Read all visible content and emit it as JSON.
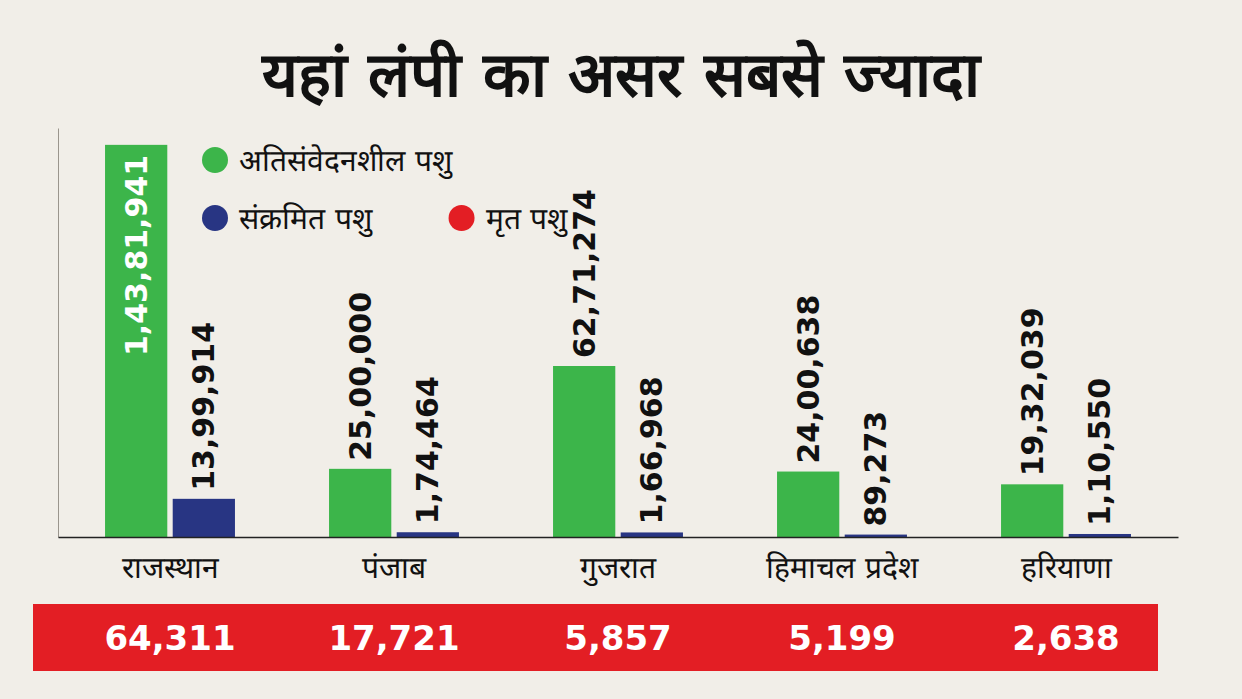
{
  "chart_data": {
    "type": "bar",
    "title": "यहां लंपी का असर सबसे ज्यादा",
    "categories": [
      "राजस्थान",
      "पंजाब",
      "गुजरात",
      "हिमाचल प्रदेश",
      "हरियाणा"
    ],
    "series": [
      {
        "name": "अतिसंवेदनशील पशु",
        "color": "#3cb54a",
        "values": [
          14381941,
          2500000,
          6271274,
          2400638,
          1932039
        ],
        "value_labels": [
          "1,43,81,941",
          "25,00,000",
          "62,71,274",
          "24,00,638",
          "19,32,039"
        ]
      },
      {
        "name": "संक्रमित पशु",
        "color": "#283583",
        "values": [
          1399914,
          174464,
          166968,
          89273,
          110550
        ],
        "value_labels": [
          "13,99,914",
          "1,74,464",
          "1,66,968",
          "89,273",
          "1,10,550"
        ]
      },
      {
        "name": "मृत पशु",
        "color": "#e31e24",
        "type": "text",
        "values": [
          64311,
          17721,
          5857,
          5199,
          2638
        ],
        "value_labels": [
          "64,311",
          "17,721",
          "5,857",
          "5,199",
          "2,638"
        ]
      }
    ],
    "ylim": [
      0,
      15000000
    ],
    "yticks": [],
    "tick_labels": "x",
    "data_labels": true,
    "legend": "upper left",
    "grid": false
  }
}
